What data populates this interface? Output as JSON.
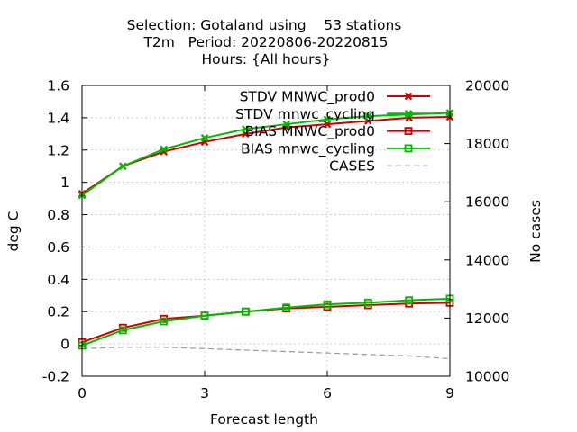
{
  "chart_data": {
    "type": "line",
    "title_lines": [
      "Selection: Gotaland using    53 stations",
      "T2m   Period: 20220806-20220815",
      "Hours: {All hours}"
    ],
    "xlabel": "Forecast length",
    "ylabel": "deg C",
    "y2label": "No cases",
    "xlim": [
      0,
      9
    ],
    "ylim": [
      -0.2,
      1.6
    ],
    "y2lim": [
      10000,
      20000
    ],
    "xticks": [
      0,
      3,
      6,
      9
    ],
    "yticks": [
      -0.2,
      0,
      0.2,
      0.4,
      0.6,
      0.8,
      1,
      1.2,
      1.4,
      1.6
    ],
    "y2ticks": [
      10000,
      12000,
      14000,
      16000,
      18000,
      20000
    ],
    "grid": true,
    "legend_position": "top-right",
    "x": [
      0,
      1,
      2,
      3,
      4,
      5,
      6,
      7,
      8,
      9
    ],
    "series": [
      {
        "name": "STDV MNWC_prod0",
        "color": "#cc0000",
        "marker": "x",
        "axis": "y",
        "values": [
          0.93,
          1.1,
          1.19,
          1.25,
          1.3,
          1.34,
          1.36,
          1.38,
          1.4,
          1.405
        ]
      },
      {
        "name": "STDV mnwc_cycling",
        "color": "#00bb00",
        "marker": "x",
        "axis": "y",
        "values": [
          0.92,
          1.1,
          1.205,
          1.275,
          1.33,
          1.36,
          1.39,
          1.41,
          1.42,
          1.43
        ]
      },
      {
        "name": "BIAS MNWC_prod0",
        "color": "#cc0000",
        "marker": "square",
        "axis": "y",
        "values": [
          0.01,
          0.1,
          0.155,
          0.175,
          0.2,
          0.22,
          0.23,
          0.24,
          0.25,
          0.255
        ]
      },
      {
        "name": "BIAS mnwc_cycling",
        "color": "#00bb00",
        "marker": "square",
        "axis": "y",
        "values": [
          -0.01,
          0.085,
          0.14,
          0.175,
          0.2,
          0.225,
          0.245,
          0.255,
          0.27,
          0.28
        ]
      },
      {
        "name": "CASES",
        "color": "#999999",
        "marker": "none",
        "dashed": true,
        "axis": "y2",
        "values": [
          10950,
          11000,
          11000,
          10950,
          10900,
          10850,
          10800,
          10750,
          10700,
          10600
        ]
      }
    ]
  }
}
